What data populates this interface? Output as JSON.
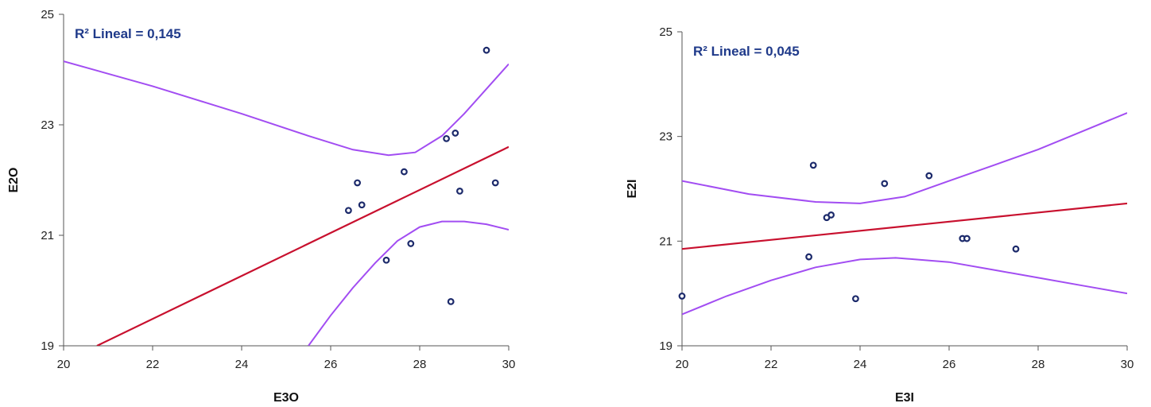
{
  "colors": {
    "points": "#1c2a6b",
    "fit_line": "#c8102e",
    "ci_lines": "#a24df2",
    "axis": "#555555",
    "r2_text": "#1f3a8a"
  },
  "chart_data": [
    {
      "type": "scatter",
      "title": "",
      "xlabel": "E3O",
      "ylabel": "E2O",
      "xlim": [
        20,
        30
      ],
      "ylim": [
        19,
        25
      ],
      "x_ticks": [
        "20",
        "22",
        "24",
        "26",
        "28",
        "30"
      ],
      "y_ticks": [
        "19",
        "21",
        "23",
        "25"
      ],
      "annotation": "R² Lineal = 0,145",
      "points": [
        {
          "x": 26.4,
          "y": 21.45
        },
        {
          "x": 26.6,
          "y": 21.95
        },
        {
          "x": 26.7,
          "y": 21.55
        },
        {
          "x": 27.25,
          "y": 20.55
        },
        {
          "x": 27.65,
          "y": 22.15
        },
        {
          "x": 27.8,
          "y": 20.85
        },
        {
          "x": 28.6,
          "y": 22.75
        },
        {
          "x": 28.7,
          "y": 19.8
        },
        {
          "x": 28.8,
          "y": 22.85
        },
        {
          "x": 28.9,
          "y": 21.8
        },
        {
          "x": 29.5,
          "y": 24.35
        },
        {
          "x": 29.7,
          "y": 21.95
        }
      ],
      "fit_line": [
        {
          "x": 20.75,
          "y": 19.0
        },
        {
          "x": 30.0,
          "y": 22.6
        }
      ],
      "ci_upper": [
        {
          "x": 20.0,
          "y": 24.15
        },
        {
          "x": 22.0,
          "y": 23.7
        },
        {
          "x": 24.0,
          "y": 23.2
        },
        {
          "x": 25.5,
          "y": 22.8
        },
        {
          "x": 26.5,
          "y": 22.55
        },
        {
          "x": 27.3,
          "y": 22.45
        },
        {
          "x": 27.9,
          "y": 22.5
        },
        {
          "x": 28.5,
          "y": 22.8
        },
        {
          "x": 29.0,
          "y": 23.2
        },
        {
          "x": 29.5,
          "y": 23.65
        },
        {
          "x": 30.0,
          "y": 24.1
        }
      ],
      "ci_lower": [
        {
          "x": 25.5,
          "y": 19.0
        },
        {
          "x": 26.0,
          "y": 19.55
        },
        {
          "x": 26.5,
          "y": 20.05
        },
        {
          "x": 27.0,
          "y": 20.5
        },
        {
          "x": 27.5,
          "y": 20.9
        },
        {
          "x": 28.0,
          "y": 21.15
        },
        {
          "x": 28.5,
          "y": 21.25
        },
        {
          "x": 29.0,
          "y": 21.25
        },
        {
          "x": 29.5,
          "y": 21.2
        },
        {
          "x": 30.0,
          "y": 21.1
        }
      ]
    },
    {
      "type": "scatter",
      "title": "",
      "xlabel": "E3I",
      "ylabel": "E2I",
      "xlim": [
        20,
        30
      ],
      "ylim": [
        19,
        25
      ],
      "x_ticks": [
        "20",
        "22",
        "24",
        "26",
        "28",
        "30"
      ],
      "y_ticks": [
        "19",
        "21",
        "23",
        "25"
      ],
      "annotation": "R² Lineal = 0,045",
      "points": [
        {
          "x": 20.0,
          "y": 19.95
        },
        {
          "x": 22.85,
          "y": 20.7
        },
        {
          "x": 22.95,
          "y": 22.45
        },
        {
          "x": 23.25,
          "y": 21.45
        },
        {
          "x": 23.35,
          "y": 21.5
        },
        {
          "x": 23.9,
          "y": 19.9
        },
        {
          "x": 24.55,
          "y": 22.1
        },
        {
          "x": 25.55,
          "y": 22.25
        },
        {
          "x": 26.3,
          "y": 21.05
        },
        {
          "x": 26.4,
          "y": 21.05
        },
        {
          "x": 27.5,
          "y": 20.85
        }
      ],
      "fit_line": [
        {
          "x": 20.0,
          "y": 20.85
        },
        {
          "x": 30.0,
          "y": 21.72
        }
      ],
      "ci_upper": [
        {
          "x": 20.0,
          "y": 22.15
        },
        {
          "x": 21.5,
          "y": 21.9
        },
        {
          "x": 23.0,
          "y": 21.75
        },
        {
          "x": 24.0,
          "y": 21.72
        },
        {
          "x": 25.0,
          "y": 21.85
        },
        {
          "x": 26.0,
          "y": 22.15
        },
        {
          "x": 27.0,
          "y": 22.45
        },
        {
          "x": 28.0,
          "y": 22.75
        },
        {
          "x": 29.0,
          "y": 23.1
        },
        {
          "x": 30.0,
          "y": 23.45
        }
      ],
      "ci_lower": [
        {
          "x": 20.0,
          "y": 19.6
        },
        {
          "x": 21.0,
          "y": 19.95
        },
        {
          "x": 22.0,
          "y": 20.25
        },
        {
          "x": 23.0,
          "y": 20.5
        },
        {
          "x": 24.0,
          "y": 20.65
        },
        {
          "x": 24.8,
          "y": 20.68
        },
        {
          "x": 26.0,
          "y": 20.6
        },
        {
          "x": 27.0,
          "y": 20.45
        },
        {
          "x": 28.0,
          "y": 20.3
        },
        {
          "x": 29.0,
          "y": 20.15
        },
        {
          "x": 30.0,
          "y": 20.0
        }
      ]
    }
  ]
}
